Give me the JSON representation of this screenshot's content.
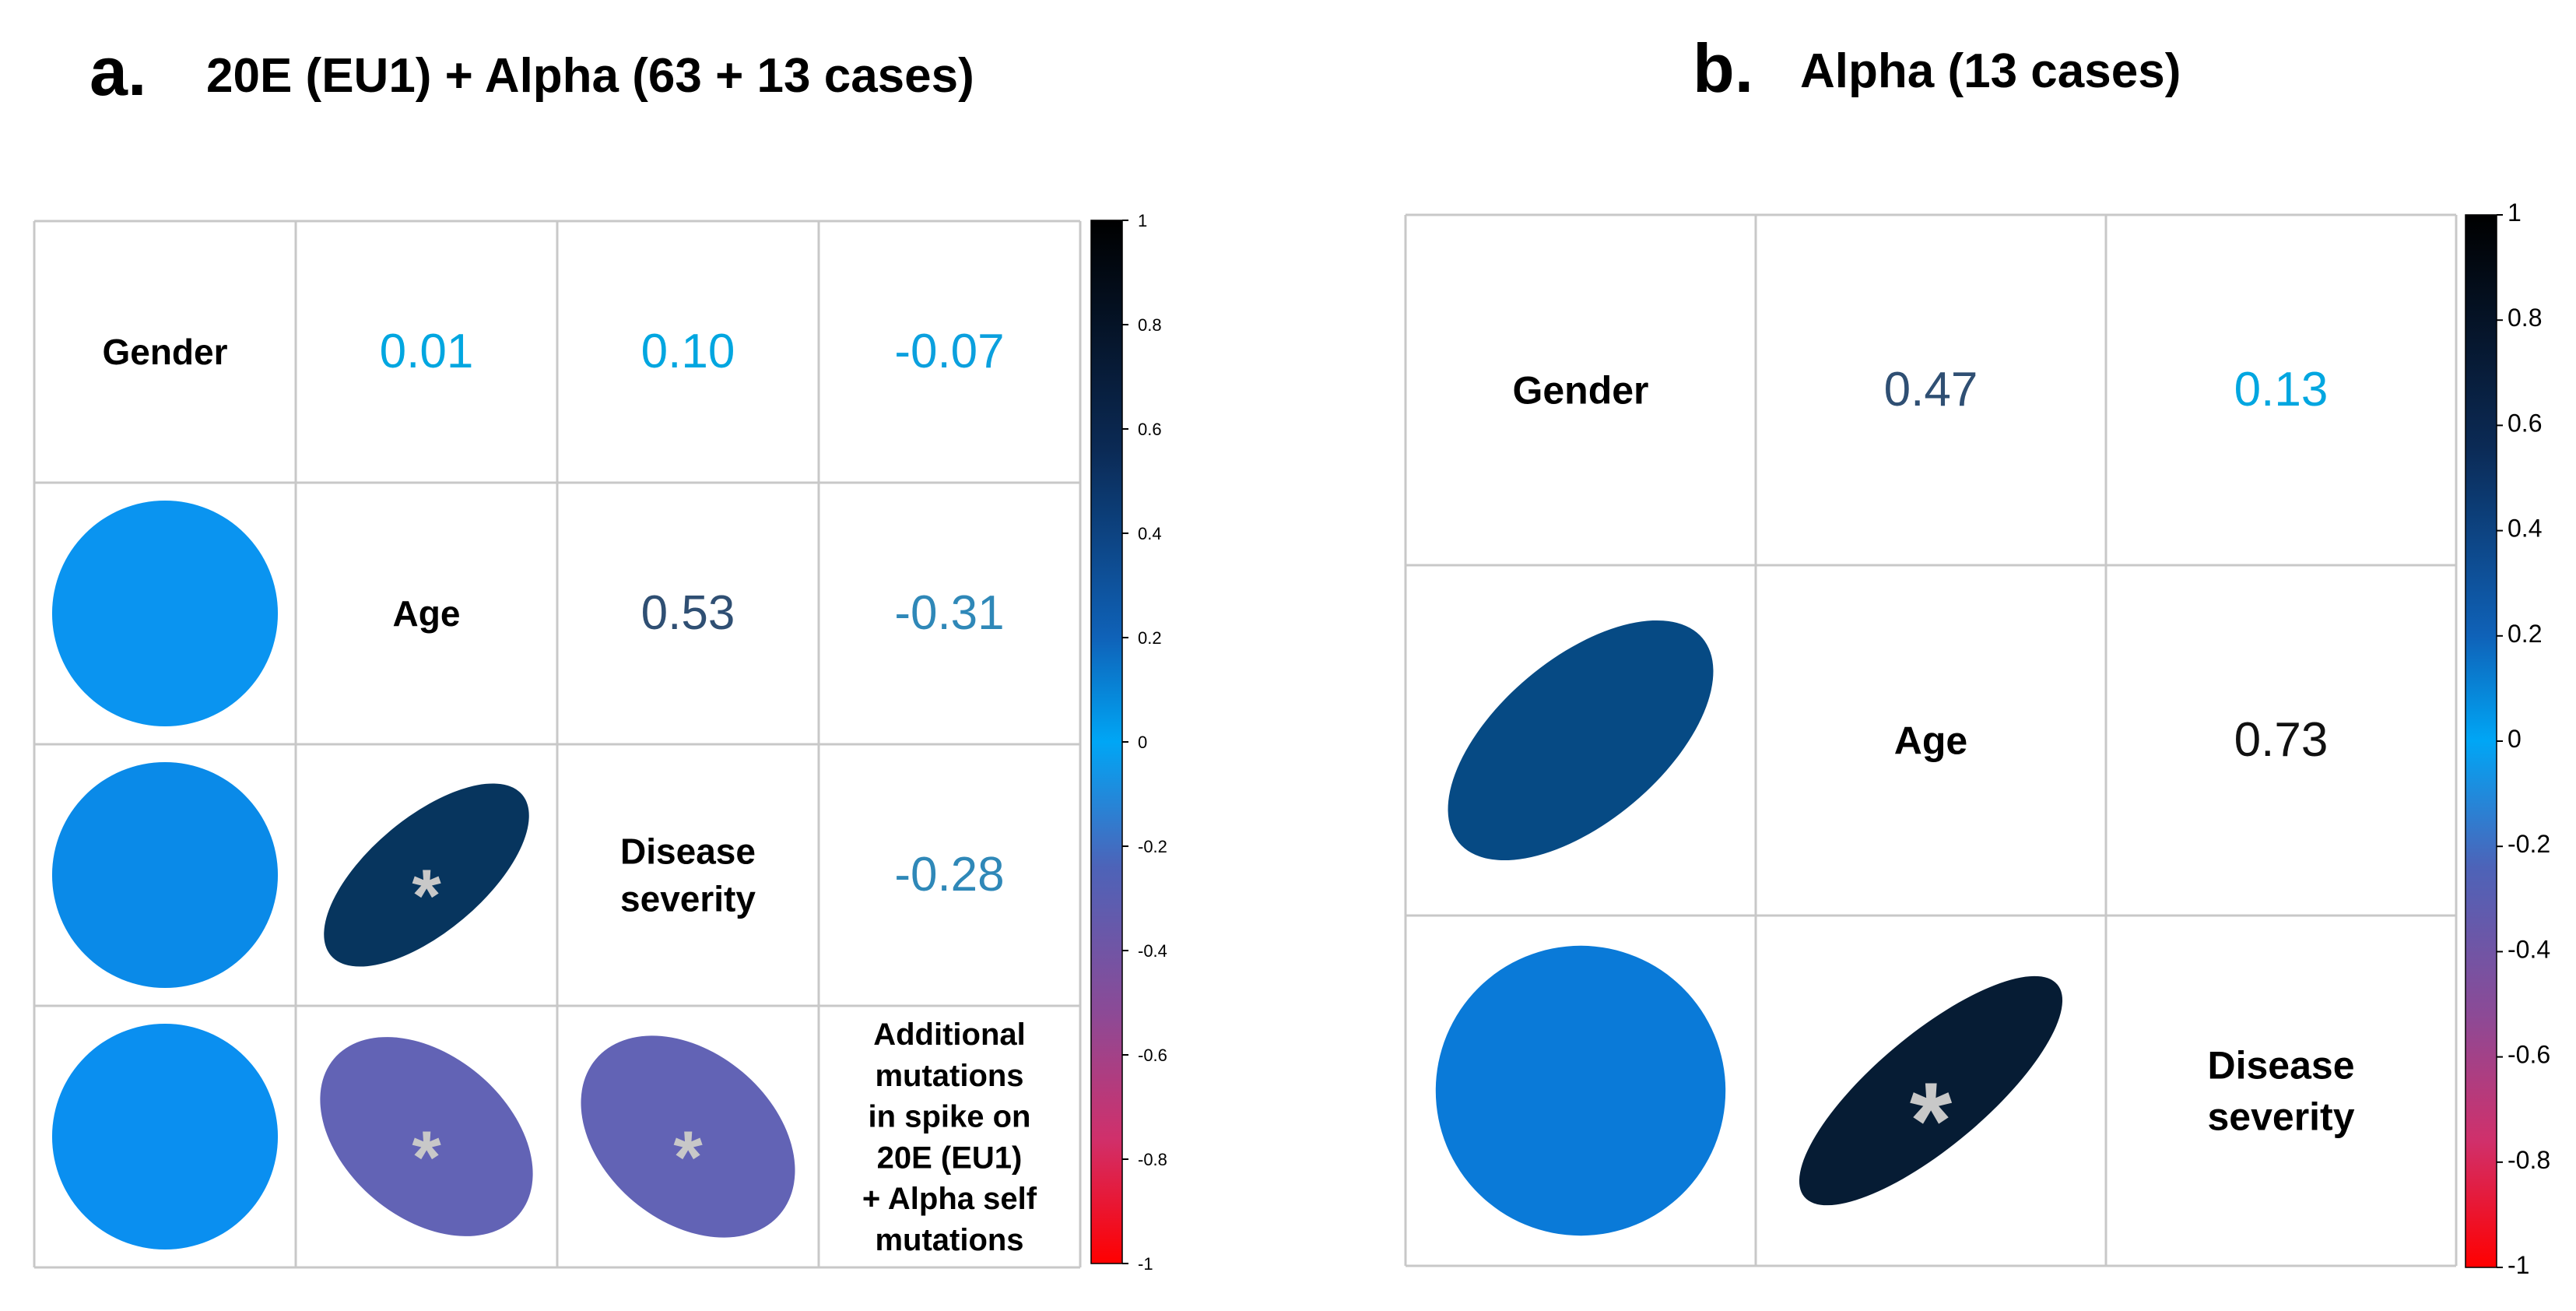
{
  "chart_data": [
    {
      "type": "heatmap",
      "subtype": "correlation-matrix",
      "panel_letter": "a.",
      "title": "20E (EU1) + Alpha (63 + 13 cases)",
      "variables": [
        [
          "Gender"
        ],
        [
          "Age"
        ],
        [
          "Disease",
          "severity"
        ],
        [
          "Additional",
          "mutations",
          "in spike on",
          "20E (EU1)",
          "+ Alpha self",
          "mutations"
        ]
      ],
      "upper": [
        {
          "row": 0,
          "col": 1,
          "text": "0.01",
          "value": 0.01,
          "color": "#00a6e0"
        },
        {
          "row": 0,
          "col": 2,
          "text": "0.10",
          "value": 0.1,
          "color": "#00a6e0"
        },
        {
          "row": 0,
          "col": 3,
          "text": "-0.07",
          "value": -0.07,
          "color": "#0ba0de"
        },
        {
          "row": 1,
          "col": 2,
          "text": "0.53",
          "value": 0.53,
          "color": "#2f4f73"
        },
        {
          "row": 1,
          "col": 3,
          "text": "-0.31",
          "value": -0.31,
          "color": "#2f88b8"
        },
        {
          "row": 2,
          "col": 3,
          "text": "-0.28",
          "value": -0.28,
          "color": "#2f88b8"
        }
      ],
      "lower": [
        {
          "row": 1,
          "col": 0,
          "value": 0.01,
          "color": "#0a94f0",
          "significant": false
        },
        {
          "row": 2,
          "col": 0,
          "value": 0.1,
          "color": "#0a8ae8",
          "significant": false
        },
        {
          "row": 2,
          "col": 1,
          "value": 0.53,
          "color": "#07355e",
          "significant": true
        },
        {
          "row": 3,
          "col": 0,
          "value": -0.07,
          "color": "#0a8ff0",
          "significant": false
        },
        {
          "row": 3,
          "col": 1,
          "value": -0.31,
          "color": "#6263b5",
          "significant": true
        },
        {
          "row": 3,
          "col": 2,
          "value": -0.28,
          "color": "#6263b5",
          "significant": true
        }
      ],
      "significance_marker": "*",
      "colorbar": {
        "range": [
          -1,
          1
        ],
        "ticks": [
          "1",
          "0.8",
          "0.6",
          "0.4",
          "0.2",
          "0",
          "-0.2",
          "-0.4",
          "-0.6",
          "-0.8",
          "-1"
        ]
      }
    },
    {
      "type": "heatmap",
      "subtype": "correlation-matrix",
      "panel_letter": "b.",
      "title": "Alpha (13 cases)",
      "variables": [
        [
          "Gender"
        ],
        [
          "Age"
        ],
        [
          "Disease",
          "severity"
        ]
      ],
      "upper": [
        {
          "row": 0,
          "col": 1,
          "text": "0.47",
          "value": 0.47,
          "color": "#2f4f73"
        },
        {
          "row": 0,
          "col": 2,
          "text": "0.13",
          "value": 0.13,
          "color": "#00a6e0"
        },
        {
          "row": 1,
          "col": 2,
          "text": "0.73",
          "value": 0.73,
          "color": "#111111"
        }
      ],
      "lower": [
        {
          "row": 1,
          "col": 0,
          "value": 0.47,
          "color": "#064a84",
          "significant": false
        },
        {
          "row": 2,
          "col": 0,
          "value": 0.13,
          "color": "#0a7ad8",
          "significant": false
        },
        {
          "row": 2,
          "col": 1,
          "value": 0.73,
          "color": "#061c34",
          "significant": true
        }
      ],
      "significance_marker": "*",
      "colorbar": {
        "range": [
          -1,
          1
        ],
        "ticks": [
          "1",
          "0.8",
          "0.6",
          "0.4",
          "0.2",
          "0",
          "-0.2",
          "-0.4",
          "-0.6",
          "-0.8",
          "-1"
        ]
      }
    }
  ]
}
